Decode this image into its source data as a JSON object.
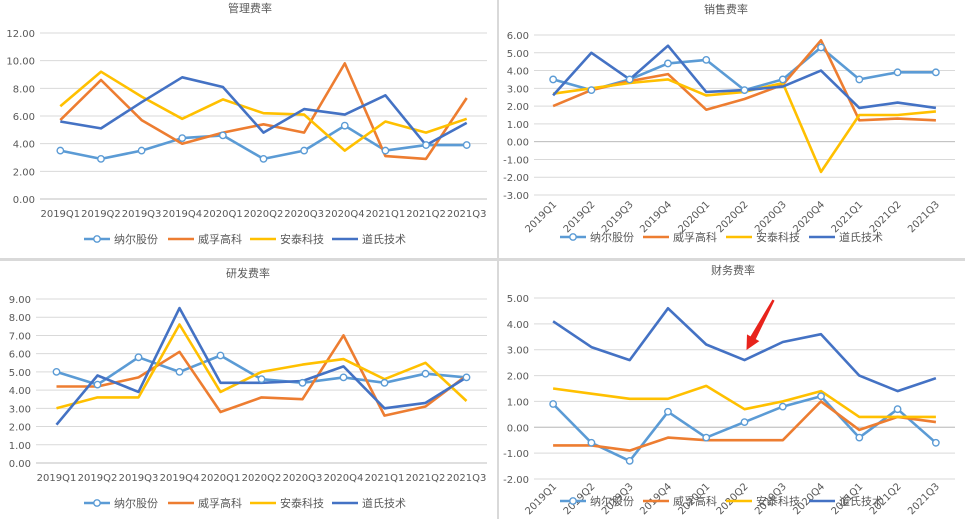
{
  "colors": {
    "nair": "#5b9bd5",
    "weifu": "#ed7d31",
    "antai": "#ffc000",
    "daoshi": "#4472c4",
    "grid": "#d9d9d9",
    "axis": "#595959",
    "arrow": "#e8231c"
  },
  "chart_data": [
    {
      "type": "line",
      "title": "管理费率",
      "categories": [
        "2019Q1",
        "2019Q2",
        "2019Q3",
        "2019Q4",
        "2020Q1",
        "2020Q2",
        "2020Q3",
        "2020Q4",
        "2021Q1",
        "2021Q2",
        "2021Q3"
      ],
      "ylim": [
        0,
        12
      ],
      "yticks": [
        "0.00",
        "2.00",
        "4.00",
        "6.00",
        "8.00",
        "10.00",
        "12.00"
      ],
      "grid": true,
      "legend_position": "bottom",
      "series": [
        {
          "name": "纳尔股份",
          "values": [
            3.5,
            2.9,
            3.5,
            4.4,
            4.6,
            2.9,
            3.5,
            5.3,
            3.5,
            3.9,
            3.9
          ]
        },
        {
          "name": "威孚高科",
          "values": [
            5.7,
            8.6,
            5.7,
            4.0,
            4.8,
            5.4,
            4.8,
            9.8,
            3.1,
            2.9,
            7.3
          ]
        },
        {
          "name": "安泰科技",
          "values": [
            6.7,
            9.2,
            7.4,
            5.8,
            7.2,
            6.2,
            6.1,
            3.5,
            5.6,
            4.8,
            5.8
          ]
        },
        {
          "name": "道氏技术",
          "values": [
            5.6,
            5.1,
            7.0,
            8.8,
            8.1,
            4.8,
            6.5,
            6.1,
            7.5,
            3.9,
            5.5
          ]
        }
      ]
    },
    {
      "type": "line",
      "title": "销售费率",
      "categories": [
        "2019Q1",
        "2019Q2",
        "2019Q3",
        "2019Q4",
        "2020Q1",
        "2020Q2",
        "2020Q3",
        "2020Q4",
        "2021Q1",
        "2021Q2",
        "2021Q3"
      ],
      "ylim": [
        -3,
        6
      ],
      "yticks": [
        "-3.00",
        "-2.00",
        "-1.00",
        "0.00",
        "1.00",
        "2.00",
        "3.00",
        "4.00",
        "5.00",
        "6.00"
      ],
      "grid": true,
      "legend_position": "bottom",
      "series": [
        {
          "name": "纳尔股份",
          "values": [
            3.5,
            2.9,
            3.5,
            4.4,
            4.6,
            2.9,
            3.5,
            5.3,
            3.5,
            3.9,
            3.9
          ]
        },
        {
          "name": "威孚高科",
          "values": [
            2.0,
            2.9,
            3.4,
            3.8,
            1.8,
            2.4,
            3.2,
            5.7,
            1.2,
            1.3,
            1.2
          ]
        },
        {
          "name": "安泰科技",
          "values": [
            2.7,
            3.0,
            3.3,
            3.5,
            2.6,
            2.8,
            3.3,
            -1.7,
            1.5,
            1.5,
            1.7
          ]
        },
        {
          "name": "道氏技术",
          "values": [
            2.6,
            5.0,
            3.5,
            5.4,
            2.8,
            2.9,
            3.1,
            4.0,
            1.9,
            2.2,
            1.9
          ]
        }
      ]
    },
    {
      "type": "line",
      "title": "研发费率",
      "categories": [
        "2019Q1",
        "2019Q2",
        "2019Q3",
        "2019Q4",
        "2020Q1",
        "2020Q2",
        "2020Q3",
        "2020Q4",
        "2021Q1",
        "2021Q2",
        "2021Q3"
      ],
      "ylim": [
        0,
        9
      ],
      "yticks": [
        "0.00",
        "1.00",
        "2.00",
        "3.00",
        "4.00",
        "5.00",
        "6.00",
        "7.00",
        "8.00",
        "9.00"
      ],
      "grid": true,
      "legend_position": "bottom",
      "series": [
        {
          "name": "纳尔股份",
          "values": [
            5.0,
            4.3,
            5.8,
            5.0,
            5.9,
            4.6,
            4.4,
            4.7,
            4.4,
            4.9,
            4.7
          ]
        },
        {
          "name": "威孚高科",
          "values": [
            4.2,
            4.2,
            4.7,
            6.1,
            2.8,
            3.6,
            3.5,
            7.0,
            2.6,
            3.1,
            4.8
          ]
        },
        {
          "name": "安泰科技",
          "values": [
            3.0,
            3.6,
            3.6,
            7.6,
            3.9,
            5.0,
            5.4,
            5.7,
            4.6,
            5.5,
            3.4
          ]
        },
        {
          "name": "道氏技术",
          "values": [
            2.1,
            4.8,
            3.9,
            8.5,
            4.4,
            4.4,
            4.5,
            5.3,
            3.0,
            3.3,
            4.7
          ]
        }
      ]
    },
    {
      "type": "line",
      "title": "财务费率",
      "categories": [
        "2019Q1",
        "2019Q2",
        "2019Q3",
        "2019Q4",
        "2020Q1",
        "2020Q2",
        "2020Q3",
        "2020Q4",
        "2021Q1",
        "2021Q2",
        "2021Q3"
      ],
      "ylim": [
        -2,
        5
      ],
      "yticks": [
        "-2.00",
        "-1.00",
        "0.00",
        "1.00",
        "2.00",
        "3.00",
        "4.00",
        "5.00"
      ],
      "grid": true,
      "legend_position": "bottom",
      "series": [
        {
          "name": "纳尔股份",
          "values": [
            0.9,
            -0.6,
            -1.3,
            0.6,
            -0.4,
            0.2,
            0.8,
            1.2,
            -0.4,
            0.7,
            -0.6
          ]
        },
        {
          "name": "威孚高科",
          "values": [
            -0.7,
            -0.7,
            -0.9,
            -0.4,
            -0.5,
            -0.5,
            -0.5,
            1.0,
            -0.1,
            0.4,
            0.2
          ]
        },
        {
          "name": "安泰科技",
          "values": [
            1.5,
            1.3,
            1.1,
            1.1,
            1.6,
            0.7,
            1.0,
            1.4,
            0.4,
            0.4,
            0.4
          ]
        },
        {
          "name": "道氏技术",
          "values": [
            4.1,
            3.1,
            2.6,
            4.6,
            3.2,
            2.6,
            3.3,
            3.6,
            2.0,
            1.4,
            1.9
          ]
        }
      ],
      "annotation": {
        "type": "arrow",
        "target_category": "2020Q2"
      }
    }
  ]
}
